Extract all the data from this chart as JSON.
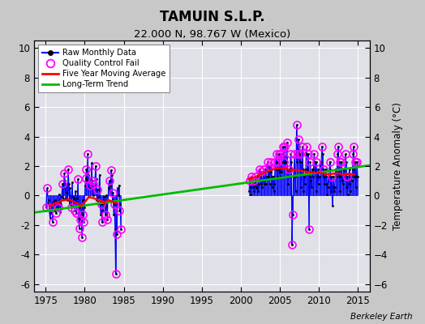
{
  "title": "TAMUIN S.L.P.",
  "subtitle": "22.000 N, 98.767 W (Mexico)",
  "ylabel": "Temperature Anomaly (°C)",
  "credit": "Berkeley Earth",
  "xlim": [
    1973.5,
    2016.5
  ],
  "ylim": [
    -6.5,
    10.5
  ],
  "yticks": [
    -6,
    -4,
    -2,
    0,
    2,
    4,
    6,
    8,
    10
  ],
  "xticks": [
    1975,
    1980,
    1985,
    1990,
    1995,
    2000,
    2005,
    2010,
    2015
  ],
  "bg_color": "#c8c8c8",
  "plot_bg_color": "#e0e0e8",
  "grid_color": "#ffffff",
  "raw_color": "#0000ff",
  "raw_marker_color": "#000000",
  "qc_color": "#ff00ff",
  "ma_color": "#ff0000",
  "trend_color": "#00bb00",
  "raw_monthly": [
    [
      1975.042,
      -0.8
    ],
    [
      1975.125,
      0.3
    ],
    [
      1975.208,
      0.5
    ],
    [
      1975.292,
      -0.5
    ],
    [
      1975.375,
      -0.3
    ],
    [
      1975.458,
      -1.0
    ],
    [
      1975.542,
      -1.5
    ],
    [
      1975.625,
      -0.8
    ],
    [
      1975.708,
      -1.2
    ],
    [
      1975.792,
      -0.5
    ],
    [
      1975.875,
      -1.8
    ],
    [
      1975.958,
      -0.7
    ],
    [
      1976.042,
      -0.4
    ],
    [
      1976.125,
      -1.0
    ],
    [
      1976.208,
      -0.3
    ],
    [
      1976.292,
      -1.2
    ],
    [
      1976.375,
      -0.6
    ],
    [
      1976.458,
      -0.9
    ],
    [
      1976.542,
      -0.5
    ],
    [
      1976.625,
      -0.8
    ],
    [
      1976.708,
      0.1
    ],
    [
      1976.792,
      -0.4
    ],
    [
      1976.875,
      -1.1
    ],
    [
      1976.958,
      -0.6
    ],
    [
      1977.042,
      -0.1
    ],
    [
      1977.125,
      0.8
    ],
    [
      1977.208,
      -0.2
    ],
    [
      1977.292,
      0.5
    ],
    [
      1977.375,
      1.5
    ],
    [
      1977.458,
      1.0
    ],
    [
      1977.542,
      -0.2
    ],
    [
      1977.625,
      0.8
    ],
    [
      1977.708,
      0.2
    ],
    [
      1977.792,
      -0.3
    ],
    [
      1977.875,
      1.8
    ],
    [
      1977.958,
      0.8
    ],
    [
      1978.042,
      -0.6
    ],
    [
      1978.125,
      0.5
    ],
    [
      1978.208,
      -0.3
    ],
    [
      1978.292,
      -0.8
    ],
    [
      1978.375,
      0.9
    ],
    [
      1978.458,
      -0.1
    ],
    [
      1978.542,
      -0.7
    ],
    [
      1978.625,
      -0.2
    ],
    [
      1978.708,
      -1.0
    ],
    [
      1978.792,
      0.3
    ],
    [
      1978.875,
      -0.4
    ],
    [
      1978.958,
      -1.2
    ],
    [
      1979.042,
      -0.2
    ],
    [
      1979.125,
      1.1
    ],
    [
      1979.208,
      -1.5
    ],
    [
      1979.292,
      -2.2
    ],
    [
      1979.375,
      -0.8
    ],
    [
      1979.458,
      -1.6
    ],
    [
      1979.542,
      -1.1
    ],
    [
      1979.625,
      -2.8
    ],
    [
      1979.708,
      -0.3
    ],
    [
      1979.792,
      -1.3
    ],
    [
      1979.875,
      -1.8
    ],
    [
      1979.958,
      -0.8
    ],
    [
      1980.042,
      0.7
    ],
    [
      1980.125,
      1.2
    ],
    [
      1980.208,
      1.8
    ],
    [
      1980.292,
      1.0
    ],
    [
      1980.375,
      2.8
    ],
    [
      1980.458,
      1.4
    ],
    [
      1980.542,
      -0.1
    ],
    [
      1980.625,
      0.7
    ],
    [
      1980.708,
      1.2
    ],
    [
      1980.792,
      0.5
    ],
    [
      1980.875,
      2.2
    ],
    [
      1980.958,
      1.0
    ],
    [
      1981.042,
      0.0
    ],
    [
      1981.125,
      0.8
    ],
    [
      1981.208,
      0.4
    ],
    [
      1981.292,
      0.7
    ],
    [
      1981.375,
      2.0
    ],
    [
      1981.458,
      1.1
    ],
    [
      1981.542,
      -0.3
    ],
    [
      1981.625,
      0.4
    ],
    [
      1981.708,
      -0.6
    ],
    [
      1981.792,
      -0.1
    ],
    [
      1981.875,
      1.4
    ],
    [
      1981.958,
      -0.4
    ],
    [
      1982.042,
      -1.3
    ],
    [
      1982.125,
      -0.6
    ],
    [
      1982.208,
      -1.8
    ],
    [
      1982.292,
      -1.0
    ],
    [
      1982.375,
      -0.3
    ],
    [
      1982.458,
      -0.1
    ],
    [
      1982.542,
      -0.6
    ],
    [
      1982.625,
      -1.3
    ],
    [
      1982.708,
      0.0
    ],
    [
      1982.792,
      -0.7
    ],
    [
      1982.875,
      -1.6
    ],
    [
      1982.958,
      -0.3
    ],
    [
      1983.042,
      0.5
    ],
    [
      1983.125,
      1.0
    ],
    [
      1983.208,
      0.3
    ],
    [
      1983.292,
      0.7
    ],
    [
      1983.375,
      1.7
    ],
    [
      1983.458,
      1.4
    ],
    [
      1983.542,
      -0.3
    ],
    [
      1983.625,
      0.2
    ],
    [
      1983.708,
      -1.3
    ],
    [
      1983.792,
      -0.6
    ],
    [
      1983.875,
      -2.3
    ],
    [
      1983.958,
      -5.3
    ],
    [
      1984.042,
      -0.3
    ],
    [
      1984.125,
      -2.6
    ],
    [
      1984.208,
      0.5
    ],
    [
      1984.292,
      0.0
    ],
    [
      1984.375,
      0.7
    ],
    [
      1984.458,
      -1.0
    ],
    [
      1984.542,
      -0.6
    ],
    [
      1984.625,
      -2.3
    ],
    [
      2001.042,
      0.3
    ],
    [
      2001.125,
      1.0
    ],
    [
      2001.208,
      0.6
    ],
    [
      2001.292,
      0.1
    ],
    [
      2001.375,
      1.3
    ],
    [
      2001.458,
      0.8
    ],
    [
      2001.542,
      0.6
    ],
    [
      2001.625,
      1.0
    ],
    [
      2001.708,
      0.3
    ],
    [
      2001.792,
      0.7
    ],
    [
      2001.875,
      1.3
    ],
    [
      2001.958,
      0.5
    ],
    [
      2002.042,
      0.6
    ],
    [
      2002.125,
      1.3
    ],
    [
      2002.208,
      0.3
    ],
    [
      2002.292,
      0.8
    ],
    [
      2002.375,
      1.8
    ],
    [
      2002.458,
      1.3
    ],
    [
      2002.542,
      0.8
    ],
    [
      2002.625,
      1.6
    ],
    [
      2002.708,
      0.6
    ],
    [
      2002.792,
      1.0
    ],
    [
      2002.875,
      1.8
    ],
    [
      2002.958,
      0.8
    ],
    [
      2003.042,
      1.0
    ],
    [
      2003.125,
      1.8
    ],
    [
      2003.208,
      0.8
    ],
    [
      2003.292,
      1.3
    ],
    [
      2003.375,
      2.3
    ],
    [
      2003.458,
      1.8
    ],
    [
      2003.542,
      1.3
    ],
    [
      2003.625,
      2.0
    ],
    [
      2003.708,
      0.8
    ],
    [
      2003.792,
      1.6
    ],
    [
      2003.875,
      2.3
    ],
    [
      2003.958,
      1.3
    ],
    [
      2004.042,
      0.6
    ],
    [
      2004.125,
      1.3
    ],
    [
      2004.208,
      0.3
    ],
    [
      2004.292,
      0.8
    ],
    [
      2004.375,
      2.3
    ],
    [
      2004.458,
      1.8
    ],
    [
      2004.542,
      2.8
    ],
    [
      2004.625,
      2.3
    ],
    [
      2004.708,
      1.3
    ],
    [
      2004.792,
      1.8
    ],
    [
      2004.875,
      2.8
    ],
    [
      2004.958,
      1.6
    ],
    [
      2005.042,
      1.3
    ],
    [
      2005.125,
      2.8
    ],
    [
      2005.208,
      1.6
    ],
    [
      2005.292,
      2.3
    ],
    [
      2005.375,
      3.3
    ],
    [
      2005.458,
      2.8
    ],
    [
      2005.542,
      2.3
    ],
    [
      2005.625,
      3.3
    ],
    [
      2005.708,
      1.8
    ],
    [
      2005.792,
      2.3
    ],
    [
      2005.875,
      3.6
    ],
    [
      2005.958,
      2.3
    ],
    [
      2006.042,
      0.8
    ],
    [
      2006.125,
      1.8
    ],
    [
      2006.208,
      1.3
    ],
    [
      2006.292,
      1.8
    ],
    [
      2006.375,
      2.8
    ],
    [
      2006.458,
      2.3
    ],
    [
      2006.542,
      -3.3
    ],
    [
      2006.625,
      -1.3
    ],
    [
      2006.708,
      1.3
    ],
    [
      2006.792,
      1.8
    ],
    [
      2006.875,
      2.8
    ],
    [
      2006.958,
      1.3
    ],
    [
      2007.042,
      0.3
    ],
    [
      2007.125,
      4.8
    ],
    [
      2007.208,
      2.3
    ],
    [
      2007.292,
      2.8
    ],
    [
      2007.375,
      3.8
    ],
    [
      2007.458,
      3.3
    ],
    [
      2007.542,
      2.3
    ],
    [
      2007.625,
      2.8
    ],
    [
      2007.708,
      0.6
    ],
    [
      2007.792,
      2.3
    ],
    [
      2007.875,
      3.3
    ],
    [
      2007.958,
      1.8
    ],
    [
      2008.042,
      0.3
    ],
    [
      2008.125,
      1.3
    ],
    [
      2008.208,
      0.8
    ],
    [
      2008.292,
      1.8
    ],
    [
      2008.375,
      3.3
    ],
    [
      2008.458,
      2.8
    ],
    [
      2008.542,
      1.8
    ],
    [
      2008.625,
      2.8
    ],
    [
      2008.708,
      -2.3
    ],
    [
      2008.792,
      1.3
    ],
    [
      2008.875,
      2.3
    ],
    [
      2008.958,
      1.0
    ],
    [
      2009.042,
      0.6
    ],
    [
      2009.125,
      1.8
    ],
    [
      2009.208,
      1.3
    ],
    [
      2009.292,
      1.8
    ],
    [
      2009.375,
      2.8
    ],
    [
      2009.458,
      2.3
    ],
    [
      2009.542,
      1.6
    ],
    [
      2009.625,
      2.3
    ],
    [
      2009.708,
      0.3
    ],
    [
      2009.792,
      1.3
    ],
    [
      2009.875,
      1.8
    ],
    [
      2009.958,
      0.8
    ],
    [
      2010.042,
      1.3
    ],
    [
      2010.125,
      2.3
    ],
    [
      2010.208,
      1.8
    ],
    [
      2010.292,
      2.3
    ],
    [
      2010.375,
      3.3
    ],
    [
      2010.458,
      2.8
    ],
    [
      2010.542,
      1.3
    ],
    [
      2010.625,
      1.8
    ],
    [
      2010.708,
      0.8
    ],
    [
      2010.792,
      1.3
    ],
    [
      2010.875,
      1.8
    ],
    [
      2010.958,
      0.8
    ],
    [
      2011.042,
      0.1
    ],
    [
      2011.125,
      1.3
    ],
    [
      2011.208,
      0.6
    ],
    [
      2011.292,
      1.3
    ],
    [
      2011.375,
      2.3
    ],
    [
      2011.458,
      1.8
    ],
    [
      2011.542,
      0.3
    ],
    [
      2011.625,
      1.3
    ],
    [
      2011.708,
      -0.7
    ],
    [
      2011.792,
      0.6
    ],
    [
      2011.875,
      1.3
    ],
    [
      2011.958,
      0.3
    ],
    [
      2012.042,
      0.6
    ],
    [
      2012.125,
      1.8
    ],
    [
      2012.208,
      1.3
    ],
    [
      2012.292,
      1.8
    ],
    [
      2012.375,
      2.8
    ],
    [
      2012.458,
      3.3
    ],
    [
      2012.542,
      1.3
    ],
    [
      2012.625,
      2.3
    ],
    [
      2012.708,
      0.3
    ],
    [
      2012.792,
      1.3
    ],
    [
      2012.875,
      2.3
    ],
    [
      2012.958,
      1.0
    ],
    [
      2013.042,
      0.8
    ],
    [
      2013.125,
      1.8
    ],
    [
      2013.208,
      1.3
    ],
    [
      2013.292,
      1.8
    ],
    [
      2013.375,
      2.8
    ],
    [
      2013.458,
      2.3
    ],
    [
      2013.542,
      0.6
    ],
    [
      2013.625,
      1.3
    ],
    [
      2013.708,
      0.1
    ],
    [
      2013.792,
      1.0
    ],
    [
      2013.875,
      1.8
    ],
    [
      2013.958,
      0.8
    ],
    [
      2014.042,
      0.3
    ],
    [
      2014.125,
      1.3
    ],
    [
      2014.208,
      1.0
    ],
    [
      2014.292,
      1.8
    ],
    [
      2014.375,
      2.8
    ],
    [
      2014.458,
      3.3
    ],
    [
      2014.542,
      1.3
    ],
    [
      2014.625,
      2.3
    ],
    [
      2014.708,
      0.6
    ],
    [
      2014.792,
      1.3
    ],
    [
      2014.875,
      2.3
    ],
    [
      2014.958,
      1.3
    ]
  ],
  "qc_fail_points": [
    [
      1975.042,
      -0.8
    ],
    [
      1975.208,
      0.5
    ],
    [
      1975.625,
      -0.8
    ],
    [
      1975.875,
      -1.8
    ],
    [
      1976.292,
      -1.2
    ],
    [
      1976.625,
      -0.8
    ],
    [
      1977.125,
      0.8
    ],
    [
      1977.375,
      1.5
    ],
    [
      1977.875,
      1.8
    ],
    [
      1978.292,
      -0.8
    ],
    [
      1978.708,
      -1.0
    ],
    [
      1978.958,
      -1.2
    ],
    [
      1979.125,
      1.1
    ],
    [
      1979.292,
      -2.2
    ],
    [
      1979.458,
      -1.6
    ],
    [
      1979.625,
      -2.8
    ],
    [
      1979.792,
      -1.3
    ],
    [
      1979.875,
      -1.8
    ],
    [
      1980.125,
      1.2
    ],
    [
      1980.208,
      1.8
    ],
    [
      1980.375,
      2.8
    ],
    [
      1980.625,
      0.7
    ],
    [
      1980.958,
      1.0
    ],
    [
      1981.125,
      0.8
    ],
    [
      1981.375,
      2.0
    ],
    [
      1981.625,
      0.4
    ],
    [
      1982.125,
      -0.6
    ],
    [
      1982.208,
      -1.8
    ],
    [
      1982.625,
      -1.3
    ],
    [
      1982.875,
      -1.6
    ],
    [
      1983.125,
      1.0
    ],
    [
      1983.375,
      1.7
    ],
    [
      1983.625,
      0.2
    ],
    [
      1983.792,
      -0.6
    ],
    [
      1983.958,
      -5.3
    ],
    [
      1984.125,
      -2.6
    ],
    [
      1984.458,
      -1.0
    ],
    [
      1984.625,
      -2.3
    ],
    [
      2001.125,
      1.0
    ],
    [
      2001.375,
      1.3
    ],
    [
      2001.625,
      1.0
    ],
    [
      2001.875,
      1.3
    ],
    [
      2002.375,
      1.8
    ],
    [
      2002.625,
      1.6
    ],
    [
      2002.875,
      1.8
    ],
    [
      2003.375,
      2.3
    ],
    [
      2003.625,
      2.0
    ],
    [
      2003.875,
      2.3
    ],
    [
      2004.375,
      2.3
    ],
    [
      2004.542,
      2.8
    ],
    [
      2004.625,
      2.3
    ],
    [
      2004.875,
      2.8
    ],
    [
      2005.125,
      2.8
    ],
    [
      2005.375,
      3.3
    ],
    [
      2005.542,
      2.3
    ],
    [
      2005.625,
      3.3
    ],
    [
      2005.875,
      3.6
    ],
    [
      2006.125,
      1.8
    ],
    [
      2006.375,
      2.8
    ],
    [
      2006.542,
      -3.3
    ],
    [
      2006.625,
      -1.3
    ],
    [
      2006.875,
      2.8
    ],
    [
      2007.125,
      4.8
    ],
    [
      2007.292,
      2.8
    ],
    [
      2007.375,
      3.8
    ],
    [
      2007.625,
      2.8
    ],
    [
      2007.875,
      3.3
    ],
    [
      2008.375,
      3.3
    ],
    [
      2008.625,
      2.8
    ],
    [
      2008.708,
      -2.3
    ],
    [
      2008.875,
      2.3
    ],
    [
      2009.375,
      2.8
    ],
    [
      2009.625,
      2.3
    ],
    [
      2010.375,
      3.3
    ],
    [
      2010.625,
      1.8
    ],
    [
      2011.375,
      2.3
    ],
    [
      2011.625,
      1.3
    ],
    [
      2012.375,
      2.8
    ],
    [
      2012.458,
      3.3
    ],
    [
      2012.625,
      2.3
    ],
    [
      2012.875,
      2.3
    ],
    [
      2013.375,
      2.8
    ],
    [
      2013.625,
      1.3
    ],
    [
      2014.375,
      2.8
    ],
    [
      2014.458,
      3.3
    ],
    [
      2014.625,
      2.3
    ],
    [
      2014.875,
      2.3
    ]
  ],
  "moving_avg_early": [
    [
      1975.5,
      -0.7
    ],
    [
      1976.0,
      -0.55
    ],
    [
      1976.5,
      -0.5
    ],
    [
      1977.0,
      -0.35
    ],
    [
      1977.5,
      -0.3
    ],
    [
      1978.0,
      -0.25
    ],
    [
      1978.5,
      -0.4
    ],
    [
      1979.0,
      -0.5
    ],
    [
      1979.5,
      -0.7
    ],
    [
      1980.0,
      -0.45
    ],
    [
      1980.5,
      -0.1
    ],
    [
      1981.0,
      -0.15
    ],
    [
      1981.5,
      -0.25
    ],
    [
      1982.0,
      -0.35
    ],
    [
      1982.5,
      -0.5
    ],
    [
      1983.0,
      -0.3
    ],
    [
      1983.5,
      -0.4
    ],
    [
      1984.0,
      -0.5
    ]
  ],
  "moving_avg_late": [
    [
      2001.0,
      1.1
    ],
    [
      2001.5,
      1.2
    ],
    [
      2002.0,
      1.3
    ],
    [
      2002.5,
      1.45
    ],
    [
      2003.0,
      1.55
    ],
    [
      2003.5,
      1.65
    ],
    [
      2004.0,
      1.75
    ],
    [
      2004.5,
      1.82
    ],
    [
      2005.0,
      1.87
    ],
    [
      2005.5,
      1.85
    ],
    [
      2006.0,
      1.78
    ],
    [
      2006.5,
      1.72
    ],
    [
      2007.0,
      1.75
    ],
    [
      2007.5,
      1.7
    ],
    [
      2008.0,
      1.65
    ],
    [
      2008.5,
      1.6
    ],
    [
      2009.0,
      1.58
    ],
    [
      2009.5,
      1.55
    ],
    [
      2010.0,
      1.55
    ],
    [
      2010.5,
      1.5
    ],
    [
      2011.0,
      1.45
    ],
    [
      2011.5,
      1.45
    ],
    [
      2012.0,
      1.5
    ],
    [
      2012.5,
      1.5
    ],
    [
      2013.0,
      1.45
    ],
    [
      2013.5,
      1.45
    ],
    [
      2014.0,
      1.45
    ],
    [
      2014.5,
      1.45
    ]
  ],
  "trend_x": [
    1973.5,
    2016.5
  ],
  "trend_y": [
    -1.15,
    2.05
  ]
}
